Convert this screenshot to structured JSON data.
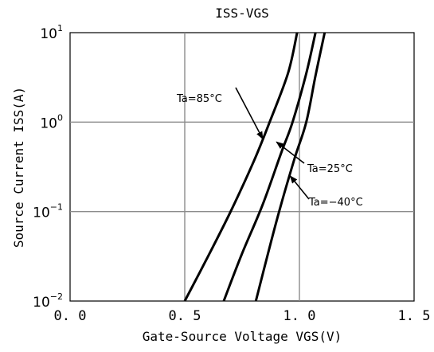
{
  "chart_data": {
    "type": "line",
    "title": "ISS-VGS",
    "xlabel": "Gate-Source Voltage VGS(V)",
    "ylabel": "Source Current ISS(A)",
    "xlim": [
      0.0,
      1.5
    ],
    "ylim": [
      0.01,
      10
    ],
    "y_scale": "log",
    "grid": true,
    "x_ticks": [
      "0.0",
      "0.5",
      "1.0",
      "1.5"
    ],
    "y_ticks": [
      {
        "base": "10",
        "exp": "-2"
      },
      {
        "base": "10",
        "exp": "-1"
      },
      {
        "base": "10",
        "exp": "0"
      },
      {
        "base": "10",
        "exp": "1"
      }
    ],
    "series": [
      {
        "name": "Ta=85°C",
        "x": [
          0.5,
          0.6,
          0.7,
          0.8,
          0.87,
          0.95,
          0.99
        ],
        "y": [
          0.01,
          0.031,
          0.1,
          0.36,
          1.0,
          3.5,
          10
        ]
      },
      {
        "name": "Ta=25°C",
        "x": [
          0.67,
          0.75,
          0.84,
          0.92,
          0.97,
          1.03,
          1.07
        ],
        "y": [
          0.01,
          0.034,
          0.12,
          0.45,
          1.0,
          3.5,
          10
        ]
      },
      {
        "name": "Ta=-40°C",
        "x": [
          0.81,
          0.87,
          0.92,
          0.98,
          1.03,
          1.07,
          1.11
        ],
        "y": [
          0.01,
          0.04,
          0.12,
          0.4,
          1.0,
          3.3,
          10
        ]
      }
    ],
    "annotations": [
      {
        "text": "Ta=85°C",
        "series": 0,
        "arrow_to": {
          "x": 0.84,
          "y": 0.65
        }
      },
      {
        "text": "Ta=25°C",
        "series": 1,
        "arrow_to": {
          "x": 0.9,
          "y": 0.6
        }
      },
      {
        "text": "Ta=−40°C",
        "series": 2,
        "arrow_to": {
          "x": 0.96,
          "y": 0.25
        }
      }
    ]
  }
}
